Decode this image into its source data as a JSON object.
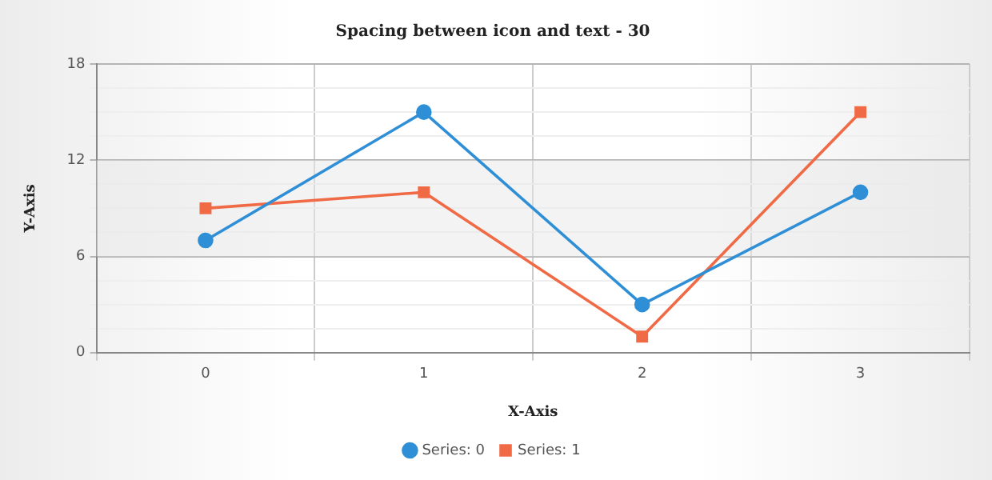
{
  "chart_data": {
    "type": "line",
    "title": "Spacing between icon and text - 30",
    "xlabel": "X-Axis",
    "ylabel": "Y-Axis",
    "categories": [
      "0",
      "1",
      "2",
      "3"
    ],
    "series": [
      {
        "name": "Series: 0",
        "color": "#2f8fd6",
        "marker": "circle",
        "values": [
          7,
          15,
          3,
          10
        ]
      },
      {
        "name": "Series: 1",
        "color": "#ef6a45",
        "marker": "square",
        "values": [
          9,
          10,
          1,
          15
        ]
      }
    ],
    "ylim": [
      0,
      18
    ],
    "yticks": [
      0,
      {
        "value": 1.5,
        "label": null
      },
      {
        "value": 3,
        "label": null
      },
      {
        "value": 4.5,
        "label": null
      },
      6,
      {
        "value": 7.5,
        "label": null
      },
      {
        "value": 9,
        "label": null
      },
      {
        "value": 10.5,
        "label": null
      },
      12,
      {
        "value": 13.5,
        "label": null
      },
      {
        "value": 15,
        "label": null
      },
      {
        "value": 16.5,
        "label": null
      },
      18
    ],
    "bands": [
      {
        "axis": "y",
        "from": 6,
        "to": 12,
        "color": "#e8e8e8"
      }
    ],
    "grid": true,
    "legend": "bottom",
    "line_style": "solid"
  }
}
